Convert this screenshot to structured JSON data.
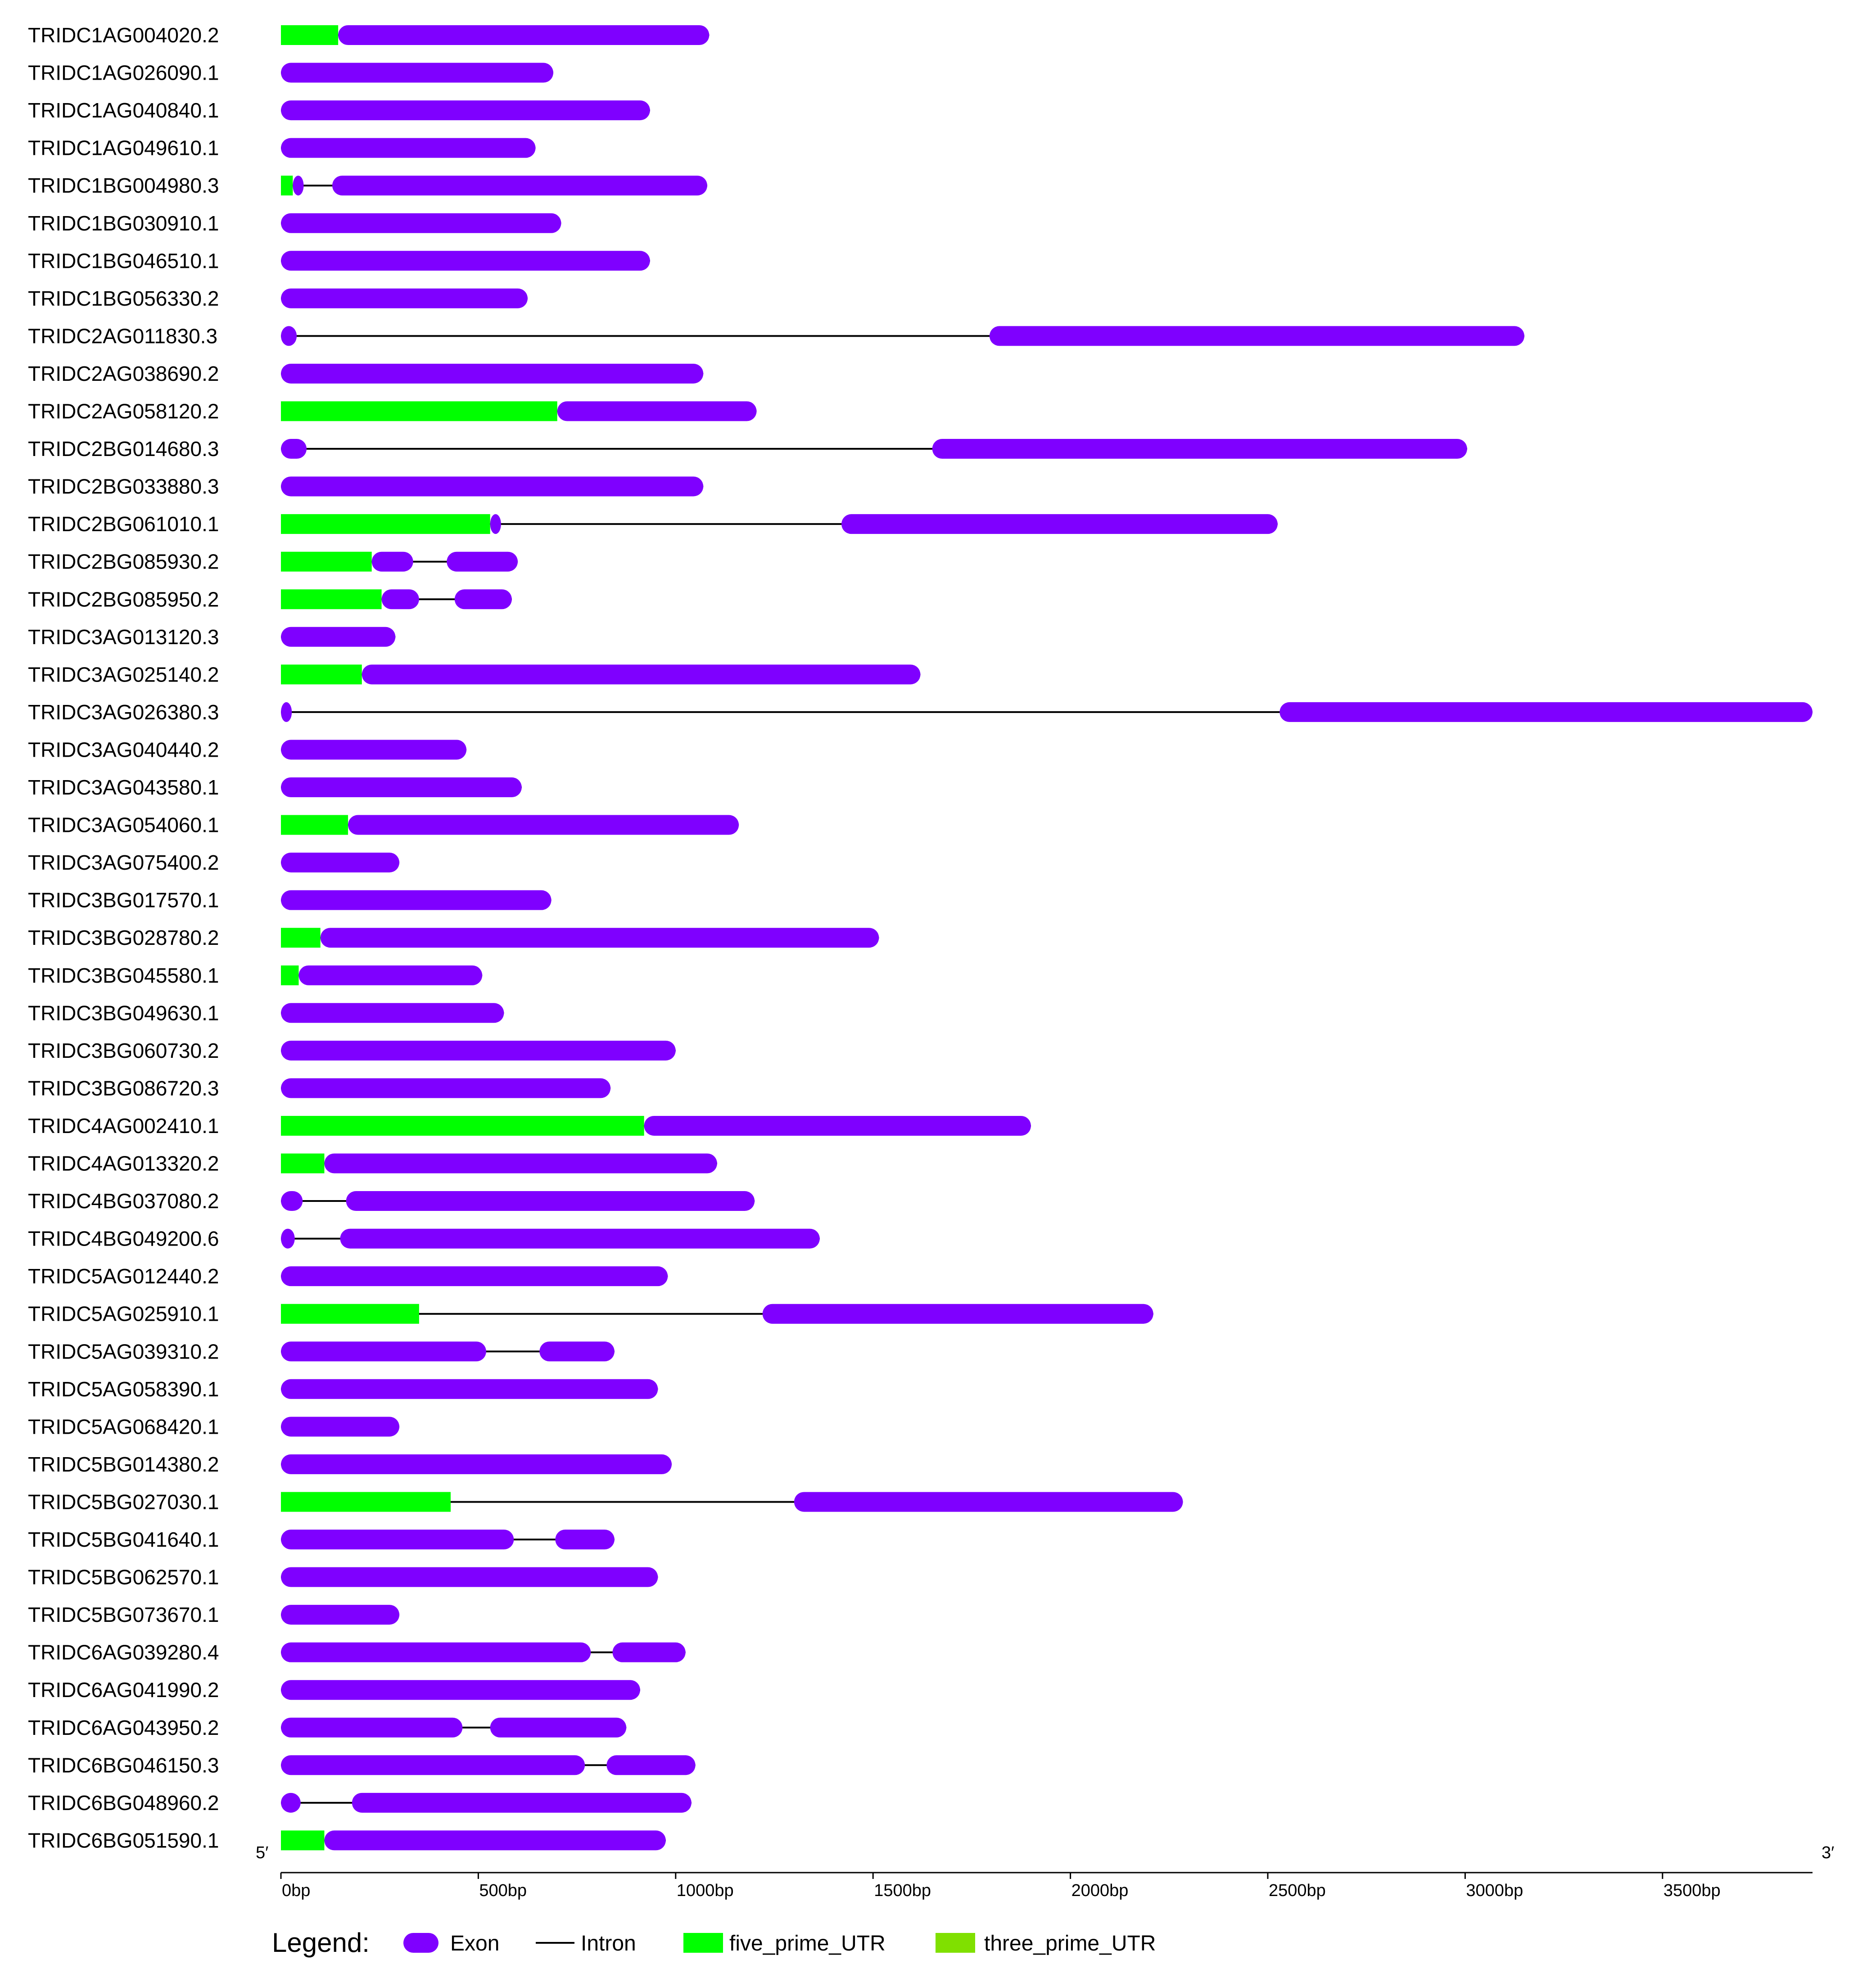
{
  "chart_data": {
    "type": "gene_structure",
    "five_prime_label": "5′",
    "three_prime_label": "3′",
    "axis": {
      "min": 0,
      "max": 3880,
      "ticks": [
        {
          "value": 0,
          "label": "0bp"
        },
        {
          "value": 500,
          "label": "500bp"
        },
        {
          "value": 1000,
          "label": "1000bp"
        },
        {
          "value": 1500,
          "label": "1500bp"
        },
        {
          "value": 2000,
          "label": "2000bp"
        },
        {
          "value": 2500,
          "label": "2500bp"
        },
        {
          "value": 3000,
          "label": "3000bp"
        },
        {
          "value": 3500,
          "label": "3500bp"
        }
      ]
    },
    "colors": {
      "exon": "#7f00ff",
      "intron": "#000000",
      "five_prime_UTR": "#00ff00",
      "three_prime_UTR": "#80e000"
    },
    "legend": {
      "title": "Legend:",
      "items": [
        {
          "key": "exon",
          "label": "Exon"
        },
        {
          "key": "intron",
          "label": "Intron"
        },
        {
          "key": "five_prime_UTR",
          "label": "five_prime_UTR"
        },
        {
          "key": "three_prime_UTR",
          "label": "three_prime_UTR"
        }
      ]
    },
    "genes": [
      {
        "name": "TRIDC1AG004020.2",
        "utr5": [
          [
            0,
            145
          ]
        ],
        "exons": [
          [
            145,
            1085
          ]
        ],
        "length": 1085
      },
      {
        "name": "TRIDC1AG026090.1",
        "utr5": [],
        "exons": [
          [
            0,
            690
          ]
        ],
        "length": 690
      },
      {
        "name": "TRIDC1AG040840.1",
        "utr5": [],
        "exons": [
          [
            0,
            935
          ]
        ],
        "length": 935
      },
      {
        "name": "TRIDC1AG049610.1",
        "utr5": [],
        "exons": [
          [
            0,
            645
          ]
        ],
        "length": 645
      },
      {
        "name": "TRIDC1BG004980.3",
        "utr5": [
          [
            0,
            30
          ]
        ],
        "exons": [
          [
            30,
            38
          ],
          [
            130,
            1080
          ]
        ],
        "length": 1080
      },
      {
        "name": "TRIDC1BG030910.1",
        "utr5": [],
        "exons": [
          [
            0,
            710
          ]
        ],
        "length": 710
      },
      {
        "name": "TRIDC1BG046510.1",
        "utr5": [],
        "exons": [
          [
            0,
            935
          ]
        ],
        "length": 935
      },
      {
        "name": "TRIDC1BG056330.2",
        "utr5": [],
        "exons": [
          [
            0,
            625
          ]
        ],
        "length": 625
      },
      {
        "name": "TRIDC2AG011830.3",
        "utr5": [],
        "exons": [
          [
            0,
            40
          ],
          [
            1795,
            3150
          ]
        ],
        "length": 3150
      },
      {
        "name": "TRIDC2AG038690.2",
        "utr5": [],
        "exons": [
          [
            0,
            1070
          ]
        ],
        "length": 1070
      },
      {
        "name": "TRIDC2AG058120.2",
        "utr5": [
          [
            0,
            700
          ]
        ],
        "exons": [
          [
            700,
            1205
          ]
        ],
        "length": 1205
      },
      {
        "name": "TRIDC2BG014680.3",
        "utr5": [],
        "exons": [
          [
            0,
            65
          ],
          [
            1650,
            3005
          ]
        ],
        "length": 3005
      },
      {
        "name": "TRIDC2BG033880.3",
        "utr5": [],
        "exons": [
          [
            0,
            1070
          ]
        ],
        "length": 1070
      },
      {
        "name": "TRIDC2BG061010.1",
        "utr5": [
          [
            0,
            530
          ]
        ],
        "exons": [
          [
            530,
            555
          ],
          [
            1420,
            2525
          ]
        ],
        "length": 2525
      },
      {
        "name": "TRIDC2BG085930.2",
        "utr5": [
          [
            0,
            230
          ]
        ],
        "exons": [
          [
            230,
            335
          ],
          [
            420,
            600
          ]
        ],
        "length": 600
      },
      {
        "name": "TRIDC2BG085950.2",
        "utr5": [
          [
            0,
            255
          ]
        ],
        "exons": [
          [
            255,
            350
          ],
          [
            440,
            585
          ]
        ],
        "length": 585
      },
      {
        "name": "TRIDC3AG013120.3",
        "utr5": [],
        "exons": [
          [
            0,
            290
          ]
        ],
        "length": 290
      },
      {
        "name": "TRIDC3AG025140.2",
        "utr5": [
          [
            0,
            205
          ]
        ],
        "exons": [
          [
            205,
            1620
          ]
        ],
        "length": 1620
      },
      {
        "name": "TRIDC3AG026380.3",
        "utr5": [],
        "exons": [
          [
            0,
            22
          ],
          [
            2530,
            3880
          ]
        ],
        "length": 3880
      },
      {
        "name": "TRIDC3AG040440.2",
        "utr5": [],
        "exons": [
          [
            0,
            470
          ]
        ],
        "length": 470
      },
      {
        "name": "TRIDC3AG043580.1",
        "utr5": [],
        "exons": [
          [
            0,
            610
          ]
        ],
        "length": 610
      },
      {
        "name": "TRIDC3AG054060.1",
        "utr5": [
          [
            0,
            170
          ]
        ],
        "exons": [
          [
            170,
            1160
          ]
        ],
        "length": 1160
      },
      {
        "name": "TRIDC3AG075400.2",
        "utr5": [],
        "exons": [
          [
            0,
            300
          ]
        ],
        "length": 300
      },
      {
        "name": "TRIDC3BG017570.1",
        "utr5": [],
        "exons": [
          [
            0,
            685
          ]
        ],
        "length": 685
      },
      {
        "name": "TRIDC3BG028780.2",
        "utr5": [
          [
            0,
            100
          ]
        ],
        "exons": [
          [
            100,
            1515
          ]
        ],
        "length": 1515
      },
      {
        "name": "TRIDC3BG045580.1",
        "utr5": [
          [
            0,
            45
          ]
        ],
        "exons": [
          [
            45,
            510
          ]
        ],
        "length": 510
      },
      {
        "name": "TRIDC3BG049630.1",
        "utr5": [],
        "exons": [
          [
            0,
            565
          ]
        ],
        "length": 565
      },
      {
        "name": "TRIDC3BG060730.2",
        "utr5": [],
        "exons": [
          [
            0,
            1000
          ]
        ],
        "length": 1000
      },
      {
        "name": "TRIDC3BG086720.3",
        "utr5": [],
        "exons": [
          [
            0,
            835
          ]
        ],
        "length": 835
      },
      {
        "name": "TRIDC4AG002410.1",
        "utr5": [
          [
            0,
            920
          ]
        ],
        "exons": [
          [
            920,
            1900
          ]
        ],
        "length": 1900
      },
      {
        "name": "TRIDC4AG013320.2",
        "utr5": [
          [
            0,
            110
          ]
        ],
        "exons": [
          [
            110,
            1105
          ]
        ],
        "length": 1105
      },
      {
        "name": "TRIDC4BG037080.2",
        "utr5": [],
        "exons": [
          [
            0,
            55
          ],
          [
            165,
            1200
          ]
        ],
        "length": 1200
      },
      {
        "name": "TRIDC4BG049200.6",
        "utr5": [],
        "exons": [
          [
            0,
            35
          ],
          [
            150,
            1365
          ]
        ],
        "length": 1365
      },
      {
        "name": "TRIDC5AG012440.2",
        "utr5": [],
        "exons": [
          [
            0,
            980
          ]
        ],
        "length": 980
      },
      {
        "name": "TRIDC5AG025910.1",
        "utr5": [
          [
            0,
            350
          ]
        ],
        "exons": [
          [
            1220,
            2210
          ]
        ],
        "length": 2210
      },
      {
        "name": "TRIDC5AG039310.2",
        "utr5": [],
        "exons": [
          [
            0,
            520
          ],
          [
            655,
            845
          ]
        ],
        "length": 845
      },
      {
        "name": "TRIDC5AG058390.1",
        "utr5": [],
        "exons": [
          [
            0,
            955
          ]
        ],
        "length": 955
      },
      {
        "name": "TRIDC5AG068420.1",
        "utr5": [],
        "exons": [
          [
            0,
            300
          ]
        ],
        "length": 300
      },
      {
        "name": "TRIDC5BG014380.2",
        "utr5": [],
        "exons": [
          [
            0,
            990
          ]
        ],
        "length": 990
      },
      {
        "name": "TRIDC5BG027030.1",
        "utr5": [
          [
            0,
            430
          ]
        ],
        "exons": [
          [
            1300,
            2285
          ]
        ],
        "length": 2285
      },
      {
        "name": "TRIDC5BG041640.1",
        "utr5": [],
        "exons": [
          [
            0,
            590
          ],
          [
            695,
            845
          ]
        ],
        "length": 845
      },
      {
        "name": "TRIDC5BG062570.1",
        "utr5": [],
        "exons": [
          [
            0,
            955
          ]
        ],
        "length": 955
      },
      {
        "name": "TRIDC5BG073670.1",
        "utr5": [],
        "exons": [
          [
            0,
            300
          ]
        ],
        "length": 300
      },
      {
        "name": "TRIDC6AG039280.4",
        "utr5": [],
        "exons": [
          [
            0,
            785
          ],
          [
            840,
            1025
          ]
        ],
        "length": 1025
      },
      {
        "name": "TRIDC6AG041990.2",
        "utr5": [],
        "exons": [
          [
            0,
            910
          ]
        ],
        "length": 910
      },
      {
        "name": "TRIDC6AG043950.2",
        "utr5": [],
        "exons": [
          [
            0,
            460
          ],
          [
            530,
            875
          ]
        ],
        "length": 875
      },
      {
        "name": "TRIDC6BG046150.3",
        "utr5": [],
        "exons": [
          [
            0,
            770
          ],
          [
            825,
            1050
          ]
        ],
        "length": 1050
      },
      {
        "name": "TRIDC6BG048960.2",
        "utr5": [],
        "exons": [
          [
            0,
            50
          ],
          [
            180,
            1040
          ]
        ],
        "length": 1040
      },
      {
        "name": "TRIDC6BG051590.1",
        "utr5": [
          [
            0,
            110
          ]
        ],
        "exons": [
          [
            110,
            975
          ]
        ],
        "length": 975
      }
    ]
  }
}
